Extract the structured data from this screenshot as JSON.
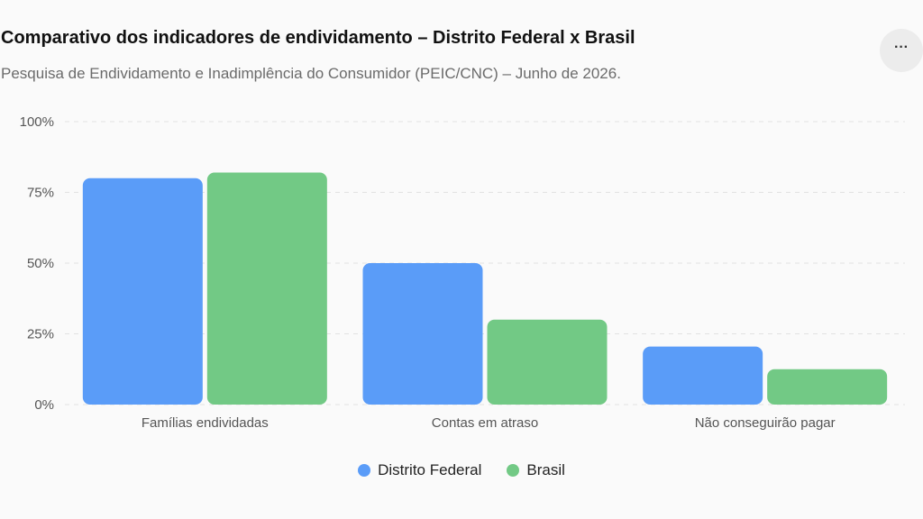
{
  "header": {
    "title": "Comparativo dos indicadores de endividamento – Distrito Federal x Brasil",
    "subtitle": "Pesquisa de Endividamento e Inadimplência do Consumidor (PEIC/CNC) – Junho de 2026.",
    "more_icon": "more-horizontal-icon",
    "more_label": "···"
  },
  "colors": {
    "distrito_federal": "#5a9cf8",
    "brasil": "#72c985",
    "grid": "#e2e2e2"
  },
  "chart_data": {
    "type": "bar",
    "title": "Comparativo dos indicadores de endividamento – Distrito Federal x Brasil",
    "subtitle": "Pesquisa de Endividamento e Inadimplência do Consumidor (PEIC/CNC) – Junho de 2026.",
    "categories": [
      "Famílias endividadas",
      "Contas em atraso",
      "Não conseguirão pagar"
    ],
    "series": [
      {
        "name": "Distrito Federal",
        "values": [
          80,
          50,
          20.5
        ]
      },
      {
        "name": "Brasil",
        "values": [
          82,
          30,
          12.5
        ]
      }
    ],
    "yticks": [
      "0%",
      "25%",
      "50%",
      "75%",
      "100%"
    ],
    "ylim": [
      0,
      100
    ],
    "grid": true,
    "legend": "bottom-center",
    "xlabel": "",
    "ylabel": ""
  }
}
